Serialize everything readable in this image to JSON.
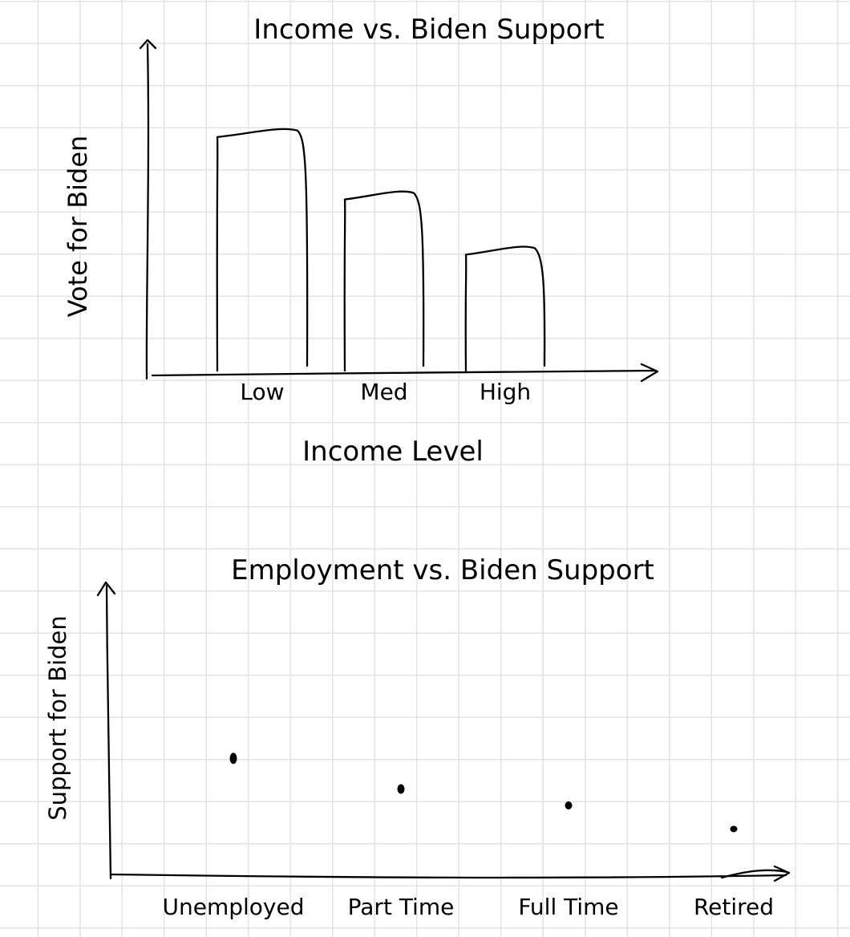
{
  "chart_data": [
    {
      "type": "bar",
      "title": "Income vs. Biden Support",
      "xlabel": "Income Level",
      "ylabel": "Vote for Biden",
      "categories": [
        "Low",
        "Med",
        "High"
      ],
      "values": [
        100,
        74,
        51
      ],
      "ylim": [
        0,
        135
      ],
      "grid": false,
      "y_ticks": "none"
    },
    {
      "type": "scatter",
      "title": "Employment vs. Biden Support",
      "xlabel": "",
      "ylabel": "Support for Biden",
      "categories": [
        "Unemployed",
        "Part Time",
        "Full Time",
        "Retired"
      ],
      "values": [
        50,
        37,
        30,
        20
      ],
      "ylim": [
        0,
        120
      ],
      "grid": false,
      "y_ticks": "none"
    }
  ]
}
